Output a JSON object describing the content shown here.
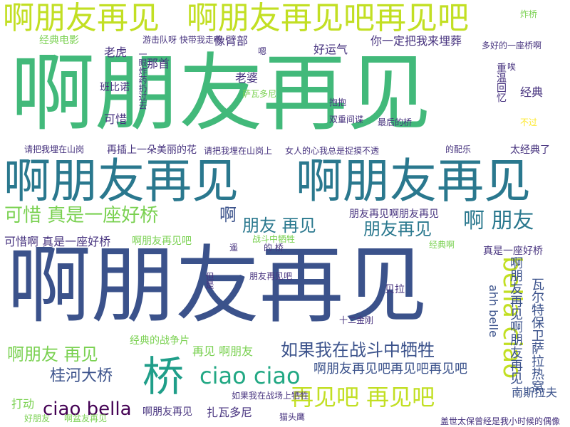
{
  "word_cloud": {
    "words": [
      {
        "text": "啊朋友再见",
        "color": "#42b97a"
      },
      {
        "text": "啊朋友再见",
        "color": "#2a788e"
      },
      {
        "text": "啊朋友再见",
        "color": "#2a788e"
      },
      {
        "text": "啊朋友再见",
        "color": "#3b528b"
      },
      {
        "text": "啊朋友再见吧再见吧",
        "color": "#c2df23"
      },
      {
        "text": "啊朋友再见",
        "color": "#c2df23"
      },
      {
        "text": "可惜 真是一座好桥",
        "color": "#7ad151"
      },
      {
        "text": "啊",
        "color": "#3b528b"
      },
      {
        "text": "朋友 再见",
        "color": "#2a788e"
      },
      {
        "text": "朋友再见",
        "color": "#2a788e"
      },
      {
        "text": "啊 朋友",
        "color": "#2a788e"
      },
      {
        "text": "桥",
        "color": "#1f9e89"
      },
      {
        "text": "ciao ciao",
        "color": "#22a884"
      },
      {
        "text": "bella ciao",
        "color": "#c2df23"
      },
      {
        "text": "再见吧 再见吧",
        "color": "#c2df23"
      },
      {
        "text": "如果我在战斗中牺牲",
        "color": "#3b528b"
      },
      {
        "text": "啊朋友 再见",
        "color": "#7ad151"
      },
      {
        "text": "啊朋友再见吧再见吧再见吧",
        "color": "#3b528b"
      },
      {
        "text": "桂河大桥",
        "color": "#3b528b"
      },
      {
        "text": "ciao bella",
        "color": "#440154"
      },
      {
        "text": "经典电影",
        "color": "#7ad151"
      },
      {
        "text": "游击队呀 快带我走吧",
        "color": "#46327e"
      },
      {
        "text": "像臂部",
        "color": "#46327e"
      },
      {
        "text": "你一定把我来埋葬",
        "color": "#46327e"
      },
      {
        "text": "老虎",
        "color": "#46327e"
      },
      {
        "text": "那首",
        "color": "#46327e"
      },
      {
        "text": "好运气",
        "color": "#46327e"
      },
      {
        "text": "老婆",
        "color": "#46327e"
      },
      {
        "text": "班比诺",
        "color": "#46327e"
      },
      {
        "text": "萨瓦多尼",
        "color": "#7ad151"
      },
      {
        "text": "经典",
        "color": "#46327e"
      },
      {
        "text": "可惜",
        "color": "#46327e"
      },
      {
        "text": "抱抱",
        "color": "#46327e"
      },
      {
        "text": "最后的桥",
        "color": "#46327e"
      },
      {
        "text": "双重间谍",
        "color": "#46327e"
      },
      {
        "text": "不过",
        "color": "#fde725"
      },
      {
        "text": "再插上一朵美丽的花",
        "color": "#46327e"
      },
      {
        "text": "请把我埋在山岗",
        "color": "#46327e"
      },
      {
        "text": "请把我埋在山岗上",
        "color": "#46327e"
      },
      {
        "text": "女人的心我总是捉摸不透",
        "color": "#46327e"
      },
      {
        "text": "太经典了",
        "color": "#46327e"
      },
      {
        "text": "的配乐",
        "color": "#46327e"
      },
      {
        "text": "可惜啊 真是一座好桥",
        "color": "#46327e"
      },
      {
        "text": "啊朋友再见吧",
        "color": "#7ad151"
      },
      {
        "text": "战斗中牺牲",
        "color": "#7ad151"
      },
      {
        "text": "朋友再见啊朋友再见",
        "color": "#46327e"
      },
      {
        "text": "真是一座好桥",
        "color": "#46327e"
      },
      {
        "text": "啊朋友再见啊朋友再见",
        "color": "#3b528b"
      },
      {
        "text": "瓦尔特保卫萨拉热窝",
        "color": "#3b528b"
      },
      {
        "text": "ahh belle",
        "color": "#3b528b"
      },
      {
        "text": "贝拉",
        "color": "#46327e"
      },
      {
        "text": "十二金刚",
        "color": "#46327e"
      },
      {
        "text": "南斯拉夫",
        "color": "#3b528b"
      },
      {
        "text": "朋友再见吧",
        "color": "#46327e"
      },
      {
        "text": "经典的战争片",
        "color": "#7ad151"
      },
      {
        "text": "再见 啊朋友",
        "color": "#7ad151"
      },
      {
        "text": "打动",
        "color": "#7ad151"
      },
      {
        "text": "如果我在战场上牺牲",
        "color": "#46327e"
      },
      {
        "text": "啊朋友再见",
        "color": "#46327e"
      },
      {
        "text": "扎瓦多尼",
        "color": "#46327e"
      },
      {
        "text": "猫头鹰",
        "color": "#46327e"
      },
      {
        "text": "好朋友",
        "color": "#7ad151"
      },
      {
        "text": "啊盆友再见",
        "color": "#7ad151"
      },
      {
        "text": "盖世太保曾经是我小时候的偶像",
        "color": "#46327e"
      },
      {
        "text": "多好的一座桥啊",
        "color": "#46327e"
      },
      {
        "text": "炸桥",
        "color": "#7ad151"
      },
      {
        "text": "嗯",
        "color": "#46327e"
      },
      {
        "text": "唉",
        "color": "#46327e"
      },
      {
        "text": "遥",
        "color": "#46327e"
      },
      {
        "text": "的 桥",
        "color": "#46327e"
      },
      {
        "text": "但是",
        "color": "#46327e"
      },
      {
        "text": "经典啊",
        "color": "#7ad151"
      },
      {
        "text": "重温回忆",
        "color": "#46327e"
      },
      {
        "text": "一眼炸药扔过去",
        "color": "#46327e"
      }
    ]
  }
}
